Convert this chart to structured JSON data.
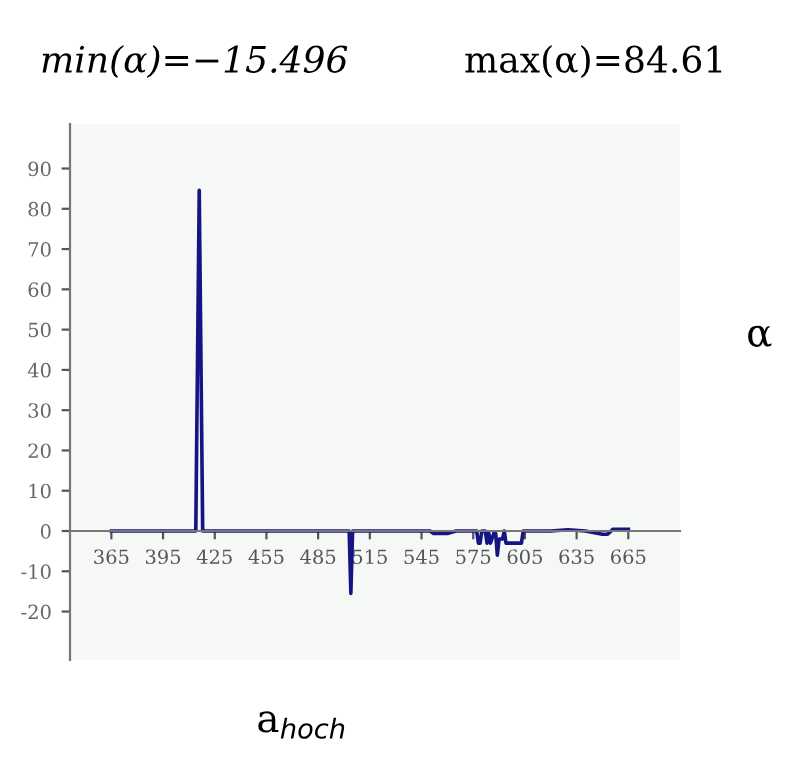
{
  "chart_data": {
    "type": "line",
    "annotations": [
      "min(α)=−15.496",
      "max(α)=84.61"
    ],
    "xlabel": "a$_{hoch}$",
    "ylabel": "α",
    "x": [
      365,
      400,
      413,
      414,
      416,
      418,
      419,
      460,
      502,
      503,
      504,
      505,
      506,
      545,
      550,
      552,
      560,
      565,
      570,
      575,
      577,
      578,
      579,
      580,
      582,
      583,
      584,
      585,
      587,
      588,
      589,
      590,
      592,
      593,
      594,
      596,
      600,
      603,
      604,
      620,
      630,
      640,
      650,
      653,
      656,
      660,
      665
    ],
    "series": [
      {
        "color": "#141485",
        "values": [
          0,
          0,
          0,
          0,
          84.61,
          0,
          0,
          0,
          0,
          0,
          -15.496,
          0,
          0,
          0,
          0,
          -0.6,
          -0.6,
          0,
          0,
          0,
          0,
          -3,
          -3,
          0,
          0,
          -3,
          -0.5,
          -3,
          -0.5,
          -0.5,
          -6,
          -2,
          -2,
          0,
          -3,
          -3,
          -3,
          -3,
          0,
          0,
          0.3,
          0,
          -0.8,
          -0.8,
          0.4,
          0.4,
          0.4
        ]
      }
    ],
    "xlim": [
      341,
      695
    ],
    "ylim": [
      -32,
      101
    ],
    "xticks": [
      365,
      395,
      425,
      455,
      485,
      515,
      545,
      575,
      605,
      635,
      665
    ],
    "yticks": [
      -20,
      -10,
      0,
      10,
      20,
      30,
      40,
      50,
      60,
      70,
      80,
      90
    ],
    "grid": false,
    "legend": false
  }
}
